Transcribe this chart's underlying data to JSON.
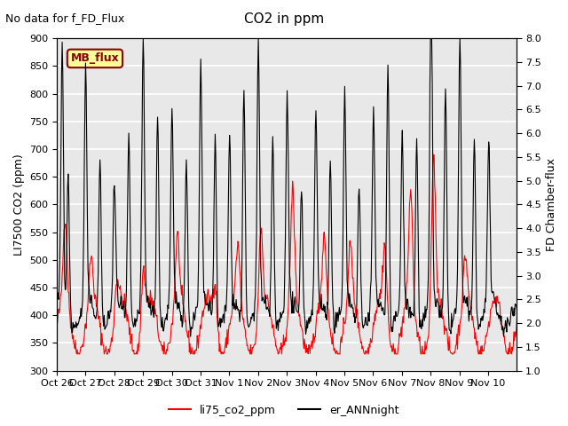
{
  "title": "CO2 in ppm",
  "top_left_text": "No data for f_FD_Flux",
  "ylabel_left": "LI7500 CO2 (ppm)",
  "ylabel_right": "FD Chamber-flux",
  "ylim_left": [
    300,
    900
  ],
  "ylim_right": [
    1.0,
    8.0
  ],
  "yticks_left": [
    300,
    350,
    400,
    450,
    500,
    550,
    600,
    650,
    700,
    750,
    800,
    850,
    900
  ],
  "yticks_right": [
    1.0,
    1.5,
    2.0,
    2.5,
    3.0,
    3.5,
    4.0,
    4.5,
    5.0,
    5.5,
    6.0,
    6.5,
    7.0,
    7.5,
    8.0
  ],
  "xticklabels": [
    "Oct 26",
    "Oct 27",
    "Oct 28",
    "Oct 29",
    "Oct 30",
    "Oct 31",
    "Nov 1",
    "Nov 2",
    "Nov 3",
    "Nov 4",
    "Nov 5",
    "Nov 6",
    "Nov 7",
    "Nov 8",
    "Nov 9",
    "Nov 10"
  ],
  "legend_entries": [
    "li75_co2_ppm",
    "er_ANNnight"
  ],
  "legend_colors": [
    "red",
    "black"
  ],
  "mb_flux_box_color": "#ffff99",
  "mb_flux_text_color": "darkred",
  "mb_flux_border_color": "darkred",
  "background_color": "#e8e8e8",
  "grid_color": "white",
  "line_color_red": "#ff0000",
  "line_color_black": "#000000"
}
